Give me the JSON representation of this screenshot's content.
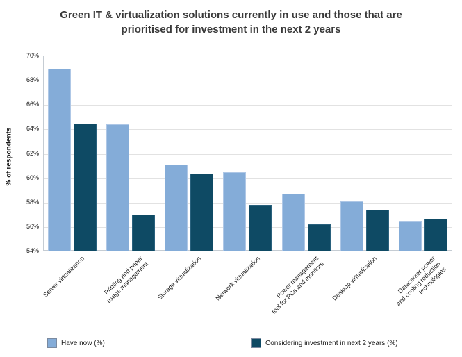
{
  "chart_data": {
    "type": "bar",
    "title": "Green IT & virtualization solutions currently in use and those that are prioritised for investment in the next 2 years",
    "ylabel": "% of respondents",
    "xlabel": "",
    "categories": [
      "Server virtualization",
      "Printing and paper usage management",
      "Storage virtualization",
      "Network virtualization",
      "Power management tool for PCs and monitors",
      "Desktop virtualization",
      "Datacenter power and cooling reduction technologies"
    ],
    "category_display_lines": [
      [
        "Server virtualization"
      ],
      [
        "Printing and paper",
        "usage management"
      ],
      [
        "Storage virtualization"
      ],
      [
        "Network virtualization"
      ],
      [
        "Power management",
        "tool for PCs and monitors"
      ],
      [
        "Desktop virtualization"
      ],
      [
        "Datacenter power",
        "and cooling reduction",
        "technologies"
      ]
    ],
    "series": [
      {
        "name": "Have now (%)",
        "color": "#84acd8",
        "border_color": "#aec7e6",
        "values": [
          69.0,
          64.4,
          61.1,
          60.5,
          58.7,
          58.1,
          56.5
        ]
      },
      {
        "name": "Considering investment in next 2 years (%)",
        "color": "#0e4a64",
        "border_color": "#29617d",
        "values": [
          64.5,
          57.0,
          60.4,
          57.8,
          56.2,
          57.4,
          56.7
        ]
      }
    ],
    "ylim": [
      54,
      70
    ],
    "ytick_step": 2,
    "ytick_suffix": "%",
    "grid": true,
    "legend_position": "bottom"
  }
}
